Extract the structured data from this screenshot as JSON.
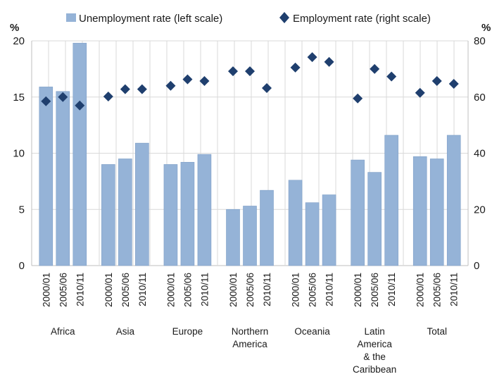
{
  "chart_data": {
    "type": "bar",
    "legend": {
      "placement": "top",
      "entries": [
        {
          "name": "Unemployment rate (left scale)",
          "marker": "bar",
          "color": "#95b3d7"
        },
        {
          "name": "Employment rate (right scale)",
          "marker": "diamond",
          "color": "#1f3f6e"
        }
      ]
    },
    "y_left": {
      "unit": "%",
      "min": 0,
      "max": 20,
      "ticks": [
        0,
        5,
        10,
        15,
        20
      ]
    },
    "y_right": {
      "unit": "%",
      "min": 0,
      "max": 80,
      "ticks": [
        0,
        20,
        40,
        60,
        80
      ]
    },
    "grid": true,
    "groups": [
      {
        "label": [
          "Africa"
        ],
        "periods": [
          "2000/01",
          "2005/06",
          "2010/11"
        ],
        "unemployment": [
          15.9,
          15.5,
          19.8
        ],
        "employment": [
          58.5,
          60.0,
          57.0
        ]
      },
      {
        "label": [
          "Asia"
        ],
        "periods": [
          "2000/01",
          "2005/06",
          "2010/11"
        ],
        "unemployment": [
          9.0,
          9.5,
          10.9
        ],
        "employment": [
          60.2,
          62.8,
          62.8
        ]
      },
      {
        "label": [
          "Europe"
        ],
        "periods": [
          "2000/01",
          "2005/06",
          "2010/11"
        ],
        "unemployment": [
          9.0,
          9.2,
          9.9
        ],
        "employment": [
          64.0,
          66.3,
          65.7
        ]
      },
      {
        "label": [
          "Northern",
          "America"
        ],
        "periods": [
          "2000/01",
          "2005/06",
          "2010/11"
        ],
        "unemployment": [
          5.0,
          5.3,
          6.7
        ],
        "employment": [
          69.2,
          69.2,
          63.2
        ]
      },
      {
        "label": [
          "Oceania"
        ],
        "periods": [
          "2000/01",
          "2005/06",
          "2010/11"
        ],
        "unemployment": [
          7.6,
          5.6,
          6.3
        ],
        "employment": [
          70.5,
          74.2,
          72.5
        ]
      },
      {
        "label": [
          "Latin",
          "America",
          "& the",
          "Caribbean"
        ],
        "periods": [
          "2000/01",
          "2005/06",
          "2010/11"
        ],
        "unemployment": [
          9.4,
          8.3,
          11.6
        ],
        "employment": [
          59.5,
          70.0,
          67.3
        ]
      },
      {
        "label": [
          "Total"
        ],
        "periods": [
          "2000/01",
          "2005/06",
          "2010/11"
        ],
        "unemployment": [
          9.7,
          9.5,
          11.6
        ],
        "employment": [
          61.5,
          65.7,
          64.7
        ]
      }
    ],
    "colors": {
      "bars": "#95b3d7",
      "bar_edge": "#7f9fc7",
      "diamonds": "#1f3f6e",
      "grid": "#d9d9d9",
      "axis": "#bfbfbf"
    }
  }
}
